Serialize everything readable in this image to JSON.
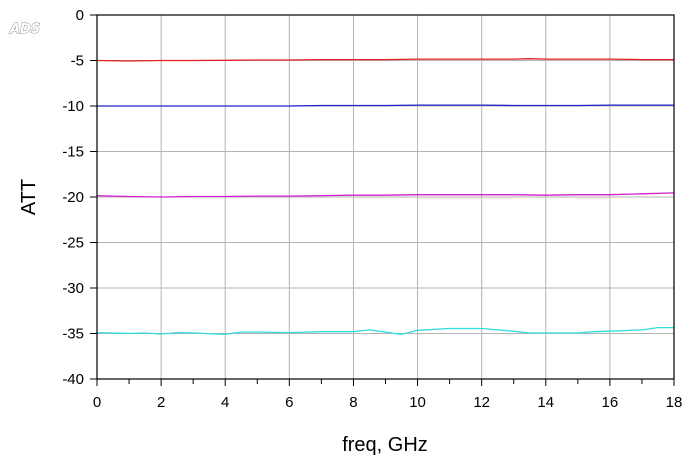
{
  "logo": "ADS",
  "chart_data": {
    "type": "line",
    "title": "",
    "xlabel": "freq, GHz",
    "ylabel": "ATT",
    "xlim": [
      0,
      18
    ],
    "ylim": [
      -40,
      0
    ],
    "xticks": [
      0,
      2,
      4,
      6,
      8,
      10,
      12,
      14,
      16,
      18
    ],
    "yticks": [
      0,
      -5,
      -10,
      -15,
      -20,
      -25,
      -30,
      -35,
      -40
    ],
    "grid": true,
    "legend": "none",
    "series": [
      {
        "color": "#e02020",
        "x": [
          0,
          1,
          2,
          3,
          4,
          5,
          6,
          7,
          8,
          9,
          10,
          11,
          12,
          13,
          13.5,
          14,
          15,
          16,
          17,
          18
        ],
        "y": [
          -5.0,
          -5.05,
          -5.0,
          -5.0,
          -4.98,
          -4.95,
          -4.95,
          -4.9,
          -4.9,
          -4.9,
          -4.85,
          -4.85,
          -4.85,
          -4.85,
          -4.8,
          -4.85,
          -4.85,
          -4.85,
          -4.9,
          -4.9
        ]
      },
      {
        "color": "#2020c8",
        "x": [
          0,
          1,
          2,
          3,
          4,
          5,
          6,
          7,
          8,
          9,
          10,
          11,
          12,
          13,
          14,
          15,
          16,
          17,
          18
        ],
        "y": [
          -10.0,
          -10.0,
          -10.0,
          -10.0,
          -10.0,
          -10.0,
          -10.0,
          -9.95,
          -9.95,
          -9.95,
          -9.9,
          -9.9,
          -9.9,
          -9.95,
          -9.95,
          -9.95,
          -9.9,
          -9.9,
          -9.9
        ]
      },
      {
        "color": "#d020d0",
        "x": [
          0,
          1,
          2,
          3,
          4,
          5,
          6,
          7,
          8,
          9,
          10,
          11,
          12,
          13,
          14,
          15,
          16,
          17,
          18
        ],
        "y": [
          -19.85,
          -19.95,
          -20.0,
          -19.95,
          -19.95,
          -19.9,
          -19.9,
          -19.85,
          -19.8,
          -19.8,
          -19.75,
          -19.75,
          -19.75,
          -19.75,
          -19.8,
          -19.75,
          -19.75,
          -19.65,
          -19.55
        ]
      },
      {
        "color": "#30dcdc",
        "x": [
          0,
          1,
          1.5,
          2,
          2.5,
          3,
          4,
          4.5,
          5,
          6,
          7,
          8,
          8.5,
          9,
          9.5,
          10,
          11,
          12,
          12.5,
          13,
          13.5,
          14,
          15,
          15.5,
          16,
          17,
          17.5,
          18
        ],
        "y": [
          -34.9,
          -35.0,
          -34.95,
          -35.05,
          -34.9,
          -34.95,
          -35.1,
          -34.85,
          -34.85,
          -34.9,
          -34.8,
          -34.8,
          -34.6,
          -34.85,
          -35.1,
          -34.65,
          -34.45,
          -34.45,
          -34.6,
          -34.75,
          -34.95,
          -34.95,
          -34.95,
          -34.8,
          -34.75,
          -34.6,
          -34.35,
          -34.35
        ]
      }
    ]
  }
}
